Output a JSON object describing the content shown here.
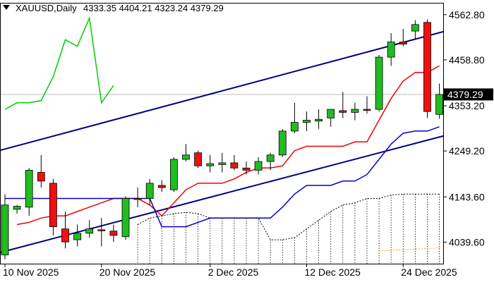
{
  "chart_data": {
    "type": "candlestick",
    "header": {
      "symbol": "XAUUSD,Daily",
      "ohlc": "4333.35 4404.21 4323.24 4379.29"
    },
    "current_price_label": "4379.29",
    "current_price": 4379.29,
    "y_ticks": [
      {
        "value": 4562.8,
        "label": "4562.80"
      },
      {
        "value": 4458.8,
        "label": "4458.80"
      },
      {
        "value": 4353.2,
        "label": "4353.20"
      },
      {
        "value": 4249.2,
        "label": "4249.20"
      },
      {
        "value": 4143.6,
        "label": "4143.60"
      },
      {
        "value": 4039.6,
        "label": "4039.60"
      }
    ],
    "ylim": [
      3990,
      4590
    ],
    "x_labels": [
      {
        "index": 0,
        "label": "10 Nov 2025"
      },
      {
        "index": 8,
        "label": "20 Nov 2025"
      },
      {
        "index": 17,
        "label": "2 Dec 2025"
      },
      {
        "index": 25,
        "label": "12 Dec 2025"
      },
      {
        "index": 33,
        "label": "24 Dec 2025"
      }
    ],
    "candles": [
      {
        "o": 4010,
        "h": 4150,
        "l": 4000,
        "c": 4125
      },
      {
        "o": 4115,
        "h": 4125,
        "l": 4105,
        "c": 4122
      },
      {
        "o": 4120,
        "h": 4210,
        "l": 4100,
        "c": 4205
      },
      {
        "o": 4200,
        "h": 4240,
        "l": 4165,
        "c": 4180
      },
      {
        "o": 4175,
        "h": 4185,
        "l": 4055,
        "c": 4075
      },
      {
        "o": 4070,
        "h": 4110,
        "l": 4025,
        "c": 4040
      },
      {
        "o": 4045,
        "h": 4080,
        "l": 4030,
        "c": 4060
      },
      {
        "o": 4060,
        "h": 4090,
        "l": 4050,
        "c": 4070
      },
      {
        "o": 4068,
        "h": 4095,
        "l": 4030,
        "c": 4066
      },
      {
        "o": 4065,
        "h": 4080,
        "l": 4040,
        "c": 4055
      },
      {
        "o": 4052,
        "h": 4145,
        "l": 4045,
        "c": 4140
      },
      {
        "o": 4140,
        "h": 4165,
        "l": 4120,
        "c": 4138
      },
      {
        "o": 4140,
        "h": 4185,
        "l": 4125,
        "c": 4175
      },
      {
        "o": 4170,
        "h": 4182,
        "l": 4155,
        "c": 4165
      },
      {
        "o": 4160,
        "h": 4235,
        "l": 4155,
        "c": 4230
      },
      {
        "o": 4230,
        "h": 4265,
        "l": 4225,
        "c": 4240
      },
      {
        "o": 4245,
        "h": 4250,
        "l": 4210,
        "c": 4215
      },
      {
        "o": 4215,
        "h": 4240,
        "l": 4200,
        "c": 4220
      },
      {
        "o": 4218,
        "h": 4245,
        "l": 4200,
        "c": 4222
      },
      {
        "o": 4222,
        "h": 4240,
        "l": 4205,
        "c": 4210
      },
      {
        "o": 4210,
        "h": 4225,
        "l": 4195,
        "c": 4205
      },
      {
        "o": 4205,
        "h": 4235,
        "l": 4195,
        "c": 4225
      },
      {
        "o": 4225,
        "h": 4245,
        "l": 4205,
        "c": 4240
      },
      {
        "o": 4240,
        "h": 4300,
        "l": 4235,
        "c": 4295
      },
      {
        "o": 4295,
        "h": 4360,
        "l": 4290,
        "c": 4315
      },
      {
        "o": 4315,
        "h": 4340,
        "l": 4295,
        "c": 4320
      },
      {
        "o": 4318,
        "h": 4345,
        "l": 4300,
        "c": 4322
      },
      {
        "o": 4325,
        "h": 4345,
        "l": 4305,
        "c": 4345
      },
      {
        "o": 4342,
        "h": 4385,
        "l": 4325,
        "c": 4338
      },
      {
        "o": 4338,
        "h": 4360,
        "l": 4320,
        "c": 4345
      },
      {
        "o": 4345,
        "h": 4375,
        "l": 4335,
        "c": 4343
      },
      {
        "o": 4345,
        "h": 4470,
        "l": 4340,
        "c": 4465
      },
      {
        "o": 4465,
        "h": 4520,
        "l": 4445,
        "c": 4500
      },
      {
        "o": 4500,
        "h": 4530,
        "l": 4490,
        "c": 4495
      },
      {
        "o": 4525,
        "h": 4550,
        "l": 4505,
        "c": 4540
      },
      {
        "o": 4545,
        "h": 4552,
        "l": 4325,
        "c": 4340
      },
      {
        "o": 4333.35,
        "h": 4404.21,
        "l": 4323.24,
        "c": 4379.29
      }
    ],
    "series": [
      {
        "color": "#ee0000",
        "values": [
          null,
          4080,
          4085,
          4095,
          4100,
          4100,
          4110,
          4120,
          4130,
          4140,
          4140,
          4140,
          4125,
          4100,
          4130,
          4160,
          4175,
          4175,
          4175,
          4185,
          4200,
          4210,
          4210,
          4215,
          4250,
          4260,
          4260,
          4260,
          4260,
          4270,
          4270,
          4320,
          4370,
          4410,
          4430,
          4430,
          4445
        ]
      },
      {
        "color": "#0000cc",
        "values": [
          4140,
          4140,
          4140,
          4140,
          4140,
          4140,
          4140,
          4140,
          4140,
          4140,
          4140,
          4140,
          4140,
          4075,
          4075,
          4075,
          4085,
          4095,
          4095,
          4095,
          4095,
          4095,
          4095,
          4120,
          4150,
          4170,
          4170,
          4170,
          4180,
          4180,
          4195,
          4230,
          4265,
          4290,
          4295,
          4295,
          4305
        ]
      },
      {
        "color": "#00cc00",
        "values": [
          4345,
          4360,
          4360,
          4365,
          4420,
          4505,
          4490,
          4555,
          4360,
          4400,
          null,
          null,
          null,
          null,
          null,
          null,
          null,
          null,
          null,
          null,
          null,
          null,
          null,
          null,
          null,
          null,
          null,
          null,
          null,
          null,
          null,
          null,
          null,
          null,
          null,
          null,
          null
        ]
      },
      {
        "color": "#000000",
        "dashed": true,
        "values": [
          null,
          null,
          null,
          null,
          null,
          null,
          null,
          null,
          null,
          null,
          null,
          4080,
          4095,
          4100,
          4105,
          4108,
          4105,
          4095,
          4095,
          4095,
          4095,
          4095,
          4045,
          4045,
          4050,
          4070,
          4090,
          4110,
          4125,
          4130,
          4140,
          4140,
          4148,
          4150,
          4150,
          4150,
          4150
        ]
      },
      {
        "color": "#ff9933",
        "dashed": true,
        "values": [
          null,
          null,
          null,
          null,
          null,
          null,
          null,
          null,
          null,
          null,
          null,
          null,
          null,
          null,
          null,
          null,
          null,
          null,
          null,
          null,
          null,
          null,
          null,
          null,
          null,
          null,
          null,
          null,
          null,
          null,
          null,
          4020,
          4020,
          4022,
          4023,
          4025,
          4026
        ]
      }
    ],
    "trendlines": [
      {
        "color": "#000080",
        "x0": -0.5,
        "y0": 4250,
        "x1": 36.5,
        "y1": 4525
      },
      {
        "color": "#000080",
        "x0": -0.5,
        "y0": 4015,
        "x1": 36.5,
        "y1": 4285
      }
    ],
    "colors": {
      "bull": "#22bb22",
      "bear": "#ee1111",
      "grid_line": "#bbbbbb",
      "label_bg": "#000000",
      "label_fg": "#ffffff"
    }
  }
}
